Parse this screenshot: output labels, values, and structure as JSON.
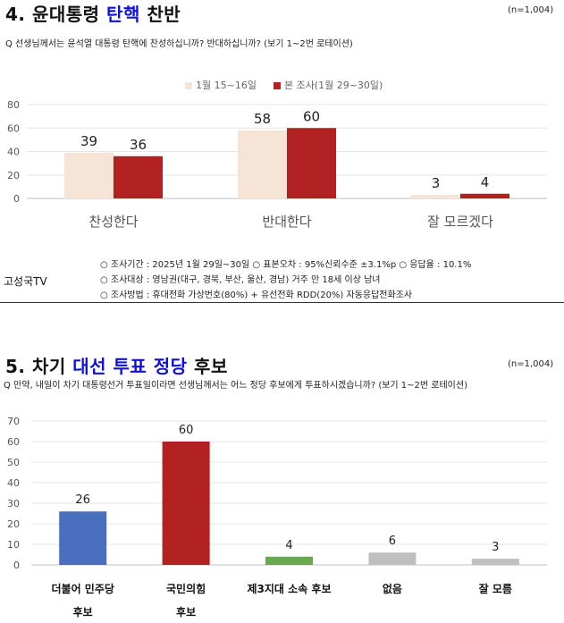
{
  "section4": {
    "title_prefix": "4. 윤대통령 ",
    "title_highlight": "탄핵",
    "title_suffix": " 찬반",
    "n": "(n=1,004)",
    "question": "Q 선생님께서는 윤석열 대통령 탄핵에 찬성하십니까? 반대하십니까?  (보기 1~2번 로테이션)"
  },
  "method": {
    "line1": "○ 조사기간 : 2025년 1월 29일~30일 ○ 표본오차 : 95%신뢰수준 ±3.1%p ○ 응답율 : 10.1%",
    "line2": "○ 조사대상 : 영남권(대구, 경북, 부산, 울산, 경남) 거주 만 18세 이상 남녀",
    "line3": "○ 조사방법 : 휴대전화 가상번호(80%) + 유선전화 RDD(20%) 자동응답전화조사",
    "source": "고성국TV"
  },
  "section5": {
    "title_prefix": "5. 차기 ",
    "title_highlight": "대선 투표 정당",
    "title_suffix": " 후보",
    "n": "(n=1,004)",
    "question": "Q 만약, 내일이 차기 대통령선거 투표일이라면 선생님께서는 어느 정당 후보에게 투표하시겠습니까? (보기 1~2번 로테이션)"
  },
  "chart_data": [
    {
      "type": "bar",
      "categories": [
        "찬성한다",
        "반대한다",
        "잘 모르겠다"
      ],
      "series": [
        {
          "name": "1월 15~16일",
          "values": [
            39,
            58,
            3
          ],
          "color": "#f6e4d6"
        },
        {
          "name": "본 조사(1월 29~30일)",
          "values": [
            36,
            60,
            4
          ],
          "color": "#b22222"
        }
      ],
      "ylim": [
        0,
        80
      ],
      "yticks": [
        0,
        20,
        40,
        60,
        80
      ],
      "grid": true,
      "legend": "top"
    },
    {
      "type": "bar",
      "categories": [
        "더불어 민주당\n후보",
        "국민의힘\n후보",
        "제3지대 소속 후보",
        "없음",
        "잘 모름"
      ],
      "values": [
        26,
        60,
        4,
        6,
        3
      ],
      "colors": [
        "#4a6fbf",
        "#b22222",
        "#6aa84f",
        "#bfbfbf",
        "#bfbfbf"
      ],
      "ylim": [
        0,
        70
      ],
      "yticks": [
        0,
        10,
        20,
        30,
        40,
        50,
        60,
        70
      ],
      "grid": true
    }
  ]
}
